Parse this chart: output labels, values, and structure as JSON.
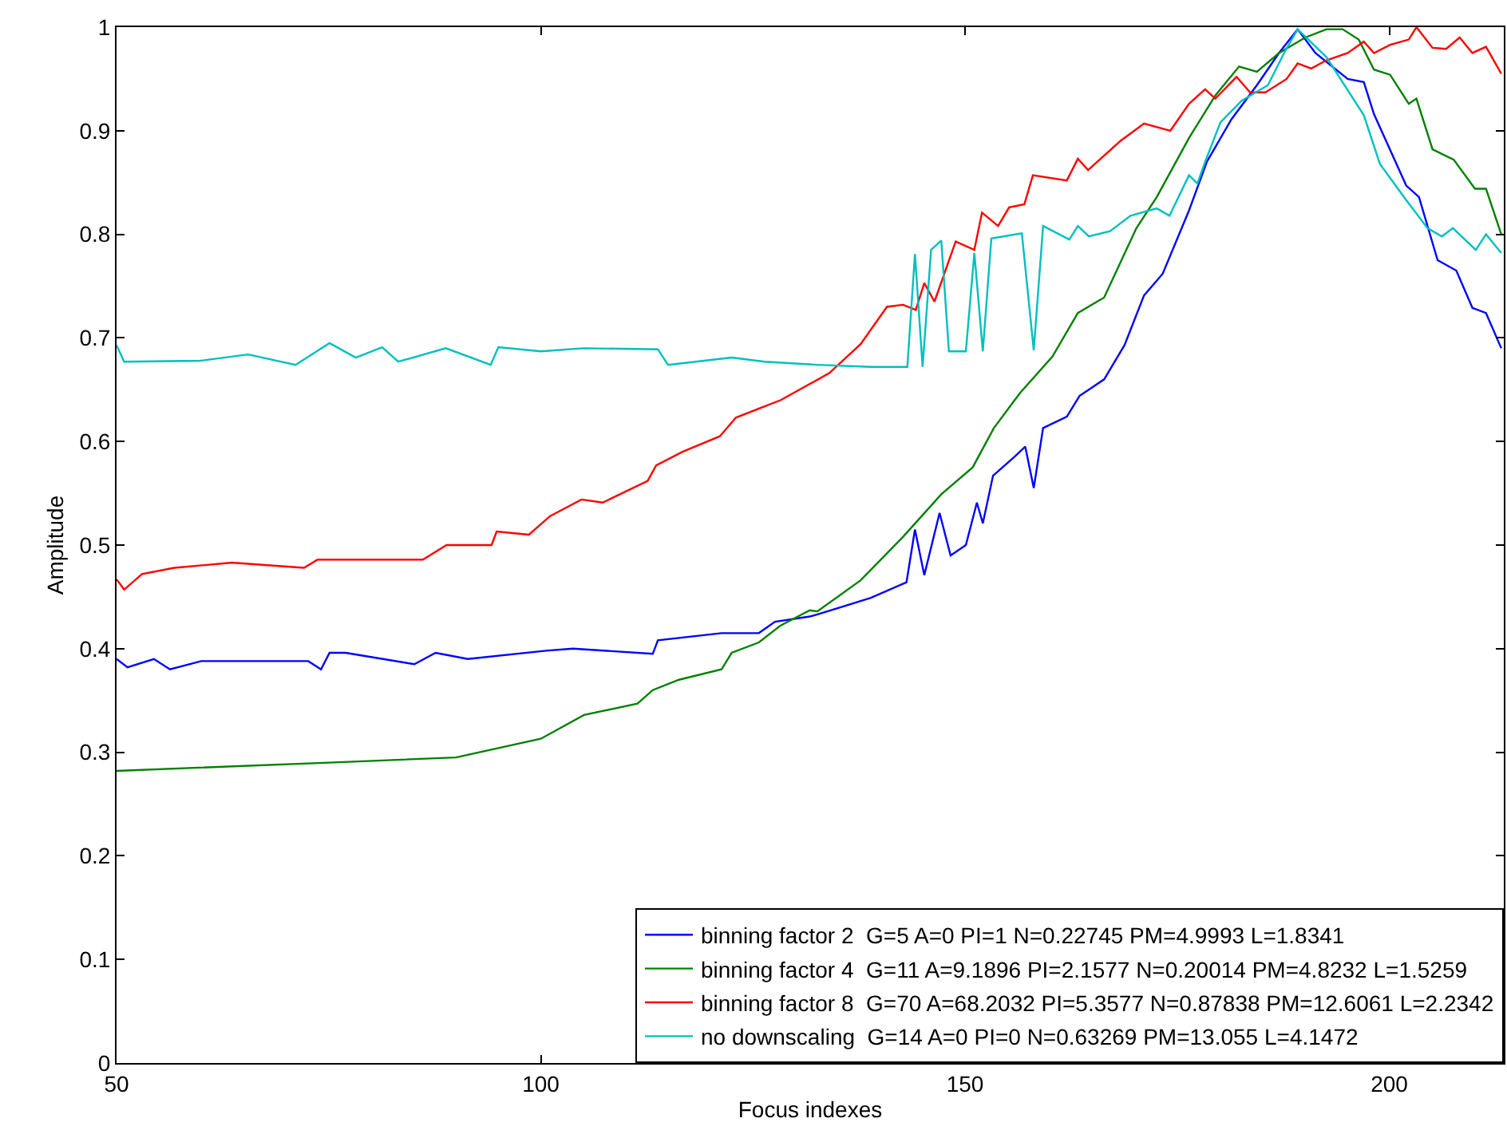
{
  "chart_data": {
    "type": "line",
    "xlabel": "Focus indexes",
    "ylabel": "Amplitude",
    "xlim": [
      50,
      213.5
    ],
    "xticks": [
      50,
      100,
      150,
      200
    ],
    "ylim": [
      0,
      1
    ],
    "yticks": [
      0,
      0.1,
      0.2,
      0.3,
      0.4,
      0.5,
      0.6,
      0.7,
      0.8,
      0.9,
      1
    ],
    "legend": "bottom right",
    "marker": "none",
    "line_style": "solid",
    "series": [
      {
        "name": "binning factor 2  G=5 A=0 PI=1 N=0.22745 PM=4.9993 L=1.8341",
        "color": "#0000ff",
        "x": [
          50,
          51.3,
          54.4,
          56.3,
          60,
          72.6,
          74.1,
          75.1,
          77,
          85.1,
          87.6,
          91.4,
          100.6,
          103.8,
          113.2,
          113.8,
          121.3,
          125.7,
          127.6,
          131.7,
          132.6,
          138.9,
          143.1,
          144.1,
          145.2,
          147,
          148.3,
          150.1,
          151.4,
          152.1,
          153.3,
          155.8,
          157.1,
          158.1,
          159.2,
          162,
          163.5,
          166.4,
          168.8,
          171.1,
          173.3,
          176.4,
          178.5,
          181.4,
          184.4,
          187,
          189.2,
          191.3,
          195.1,
          197,
          198.2,
          202,
          203.5,
          205.7,
          207.9,
          209.8,
          211.4,
          213.2
        ],
        "values": [
          0.39,
          0.382,
          0.39,
          0.38,
          0.388,
          0.388,
          0.38,
          0.396,
          0.396,
          0.385,
          0.396,
          0.39,
          0.398,
          0.4,
          0.395,
          0.408,
          0.415,
          0.415,
          0.426,
          0.431,
          0.433,
          0.449,
          0.464,
          0.515,
          0.471,
          0.531,
          0.49,
          0.5,
          0.541,
          0.521,
          0.567,
          0.585,
          0.595,
          0.555,
          0.613,
          0.624,
          0.644,
          0.66,
          0.693,
          0.741,
          0.762,
          0.823,
          0.87,
          0.911,
          0.944,
          0.975,
          0.998,
          0.975,
          0.95,
          0.947,
          0.916,
          0.847,
          0.836,
          0.775,
          0.765,
          0.729,
          0.724,
          0.69
        ]
      },
      {
        "name": "binning factor 4  G=11 A=9.1896 PI=2.1577 N=0.20014 PM=4.8232 L=1.5259",
        "color": "#008000",
        "x": [
          50,
          75,
          90,
          100,
          105.1,
          111.4,
          113.2,
          116.3,
          121.3,
          122.5,
          125.7,
          128.2,
          131.7,
          132.6,
          137.7,
          142.7,
          147.2,
          150.9,
          153.4,
          156.5,
          160.3,
          163.3,
          166.4,
          170.2,
          172.6,
          176.4,
          179.5,
          182.3,
          184.4,
          187,
          190.1,
          192.6,
          194.5,
          196.4,
          198.2,
          200.1,
          202.3,
          203.2,
          205.1,
          207.6,
          210.1,
          211.4,
          213.2
        ],
        "values": [
          0.282,
          0.29,
          0.295,
          0.313,
          0.336,
          0.347,
          0.36,
          0.37,
          0.38,
          0.396,
          0.406,
          0.422,
          0.437,
          0.436,
          0.466,
          0.508,
          0.549,
          0.575,
          0.613,
          0.647,
          0.682,
          0.724,
          0.739,
          0.806,
          0.836,
          0.893,
          0.934,
          0.962,
          0.957,
          0.975,
          0.99,
          0.998,
          0.998,
          0.988,
          0.959,
          0.954,
          0.926,
          0.931,
          0.882,
          0.872,
          0.844,
          0.844,
          0.8
        ]
      },
      {
        "name": "binning factor 8  G=70 A=68.2032 PI=5.3577 N=0.87838 PM=12.6061 L=2.2342",
        "color": "#ff0000",
        "x": [
          50,
          50.9,
          53,
          56.8,
          63.6,
          72.1,
          73.7,
          78.6,
          86.1,
          88.9,
          94.2,
          94.8,
          98.6,
          101.1,
          104.8,
          107.3,
          112.6,
          113.6,
          116.7,
          121.1,
          123,
          126.4,
          128.3,
          134,
          137.7,
          140.8,
          142.7,
          144.2,
          145.2,
          146.4,
          148.9,
          151.1,
          152,
          153.9,
          155.2,
          157,
          158,
          162,
          163.3,
          164.5,
          168.3,
          171.1,
          174.2,
          176.4,
          178.3,
          179.5,
          182,
          183.6,
          185.4,
          187.9,
          189.2,
          190.8,
          192.6,
          195.1,
          197,
          198.2,
          200.1,
          202.3,
          203.2,
          205.1,
          206.7,
          208.3,
          209.8,
          211.4,
          213.2
        ],
        "values": [
          0.467,
          0.457,
          0.472,
          0.478,
          0.483,
          0.478,
          0.486,
          0.486,
          0.486,
          0.5,
          0.5,
          0.513,
          0.51,
          0.528,
          0.544,
          0.541,
          0.562,
          0.577,
          0.59,
          0.605,
          0.623,
          0.634,
          0.64,
          0.666,
          0.694,
          0.73,
          0.732,
          0.727,
          0.753,
          0.735,
          0.793,
          0.785,
          0.821,
          0.808,
          0.826,
          0.829,
          0.857,
          0.852,
          0.873,
          0.862,
          0.89,
          0.907,
          0.9,
          0.926,
          0.94,
          0.931,
          0.952,
          0.937,
          0.937,
          0.95,
          0.965,
          0.96,
          0.968,
          0.975,
          0.986,
          0.975,
          0.983,
          0.988,
          1.0,
          0.98,
          0.979,
          0.99,
          0.975,
          0.981,
          0.955
        ]
      },
      {
        "name": "no downscaling  G=14 A=0 PI=0 N=0.63269 PM=13.055 L=4.1472",
        "color": "#00bfbf",
        "x": [
          50,
          50.9,
          59.9,
          65.5,
          71.1,
          75.1,
          78.2,
          81.3,
          83.2,
          88.8,
          94.1,
          95,
          100,
          105,
          113.8,
          115,
          122.5,
          126.4,
          132.6,
          138.9,
          143.2,
          144.1,
          145,
          146,
          147.2,
          148.1,
          150.1,
          151.1,
          152.1,
          153.1,
          156.7,
          158.1,
          159.2,
          162.3,
          163.3,
          164.6,
          167.1,
          169.5,
          172.6,
          174.1,
          176.4,
          177.4,
          178.3,
          180.1,
          182.6,
          185.7,
          187.6,
          189.2,
          192.6,
          197,
          198.9,
          202,
          204.5,
          206.2,
          207.5,
          210.2,
          211.4,
          213.2
        ],
        "values": [
          0.693,
          0.677,
          0.678,
          0.684,
          0.674,
          0.695,
          0.681,
          0.691,
          0.677,
          0.69,
          0.674,
          0.691,
          0.687,
          0.69,
          0.689,
          0.674,
          0.681,
          0.677,
          0.674,
          0.672,
          0.672,
          0.781,
          0.672,
          0.785,
          0.794,
          0.687,
          0.687,
          0.782,
          0.687,
          0.796,
          0.801,
          0.688,
          0.808,
          0.795,
          0.808,
          0.798,
          0.803,
          0.818,
          0.825,
          0.818,
          0.857,
          0.849,
          0.87,
          0.908,
          0.929,
          0.944,
          0.975,
          0.998,
          0.971,
          0.915,
          0.868,
          0.833,
          0.806,
          0.798,
          0.806,
          0.785,
          0.8,
          0.782
        ]
      }
    ]
  }
}
